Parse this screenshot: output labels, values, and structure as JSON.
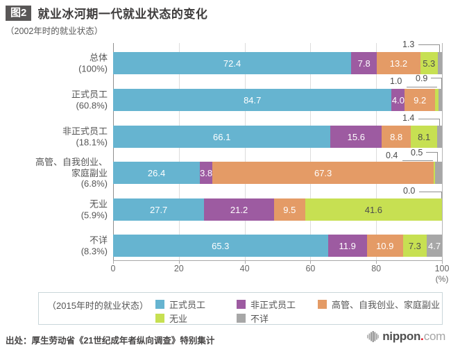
{
  "header": {
    "badge": "图2",
    "title": "就业冰河期一代就业状态的变化",
    "subtitle": "（2002年时的就业状态）"
  },
  "chart_data": {
    "type": "bar",
    "orientation": "horizontal",
    "stacked": true,
    "title": "就业冰河期一代就业状态的变化",
    "categories": [
      {
        "name": "总体",
        "share": "(100%)"
      },
      {
        "name": "正式员工",
        "share": "(60.8%)"
      },
      {
        "name": "非正式员工",
        "share": "(18.1%)"
      },
      {
        "name": "高管、自我创业、家庭副业",
        "share": "(6.8%)",
        "name_lines": [
          "高管、自我创业、",
          "家庭副业"
        ]
      },
      {
        "name": "无业",
        "share": "(5.9%)"
      },
      {
        "name": "不详",
        "share": "(8.3%)"
      }
    ],
    "series": [
      {
        "name": "正式员工",
        "color": "#66b4d0",
        "values": [
          72.4,
          84.7,
          66.1,
          26.4,
          27.7,
          65.3
        ]
      },
      {
        "name": "非正式员工",
        "color": "#9d5ba1",
        "values": [
          7.8,
          4.0,
          15.6,
          3.8,
          21.2,
          11.9
        ]
      },
      {
        "name": "高管、自我创业、家庭副业",
        "color": "#e49b66",
        "values": [
          13.2,
          9.2,
          8.8,
          67.3,
          9.5,
          10.9
        ]
      },
      {
        "name": "无业",
        "color": "#c7e052",
        "values": [
          5.3,
          1.0,
          8.1,
          0.4,
          41.6,
          7.3
        ]
      },
      {
        "name": "不详",
        "color": "#a7a7a7",
        "values": [
          1.3,
          0.9,
          1.4,
          0.5,
          0.0,
          4.7
        ]
      }
    ],
    "xticks": [
      0,
      20,
      40,
      60,
      80,
      100
    ],
    "xlim": [
      0,
      100
    ],
    "xunit": "(%)",
    "legend_title": "（2015年时的就业状态）",
    "legend_position": "bottom",
    "grid": true,
    "label_dark_color": "#4d4d4d",
    "label_light_color": "#ffffff"
  },
  "footer": {
    "source": "出处：厚生劳动省《21世纪成年者纵向调查》特别集计"
  },
  "logo": {
    "icon": "nippon-bars-globe-icon",
    "name": "nippon",
    "dot": ".",
    "tld": "com",
    "dot_color": "#e60012"
  }
}
